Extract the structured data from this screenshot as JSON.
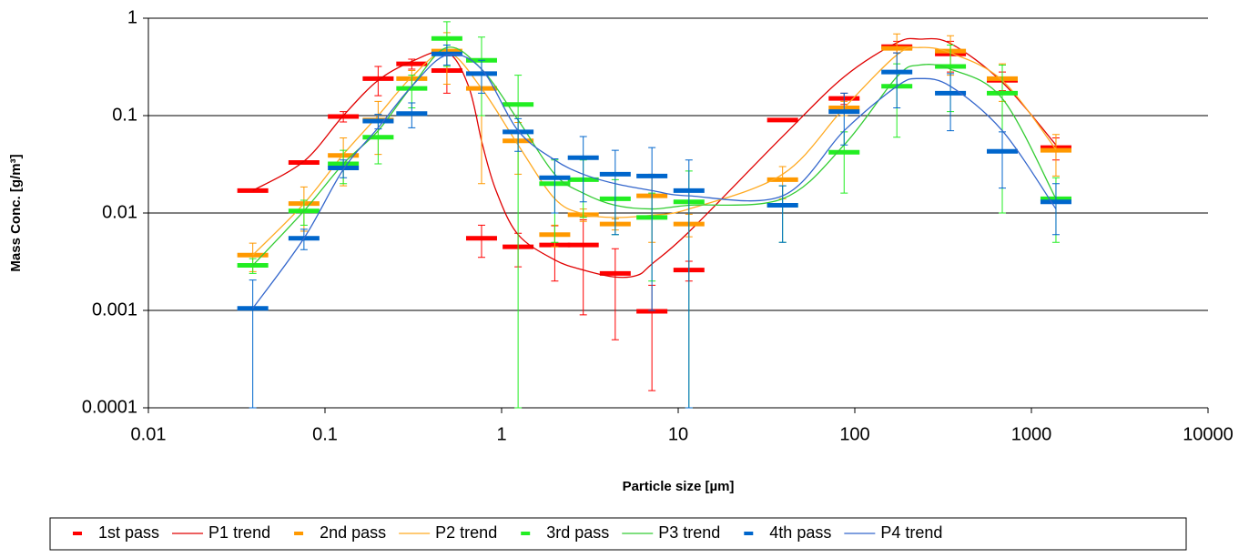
{
  "chart_data": {
    "type": "scatter",
    "x_label": "Particle size [µm]",
    "y_label": "Mass Conc. [g/m³]",
    "xscale": "log",
    "yscale": "log",
    "xlim": [
      0.01,
      10000
    ],
    "xticks": [
      0.01,
      0.1,
      1,
      10,
      100,
      1000,
      10000
    ],
    "ylim": [
      0.0001,
      1
    ],
    "yticks": [
      0.0001,
      0.001,
      0.01,
      0.1,
      1
    ],
    "grid": true,
    "legend": "bottom",
    "series": [
      {
        "name": "1st pass",
        "style": "dash",
        "color": "#ff0000",
        "x": [
          0.039,
          0.076,
          0.127,
          0.2,
          0.31,
          0.49,
          0.77,
          1.24,
          2.0,
          2.9,
          4.4,
          7.1,
          11.5,
          39,
          87,
          173,
          348,
          684,
          1377
        ],
        "values": [
          0.017,
          0.033,
          0.098,
          0.24,
          0.34,
          0.29,
          0.0055,
          0.0045,
          0.0047,
          0.0047,
          0.0024,
          0.00098,
          0.0026,
          0.09,
          0.15,
          0.51,
          0.43,
          0.23,
          0.047
        ],
        "errors": [
          0,
          0.001,
          0.012,
          0.08,
          0.04,
          0.12,
          0.002,
          0.0017,
          0.0027,
          0.0038,
          0.0019,
          0.00083,
          0.0006,
          0,
          0.02,
          0.07,
          0.15,
          0.05,
          0.012
        ]
      },
      {
        "name": "P1 trend",
        "style": "line",
        "color": "#e00000",
        "x": [
          0.039,
          0.076,
          0.127,
          0.2,
          0.31,
          0.49,
          0.65,
          0.78,
          0.93,
          1.24,
          2.0,
          2.9,
          4.4,
          5.9,
          7.1,
          11.5,
          39,
          87,
          173,
          232,
          348,
          684,
          1377
        ],
        "values": [
          0.017,
          0.034,
          0.1,
          0.23,
          0.36,
          0.45,
          0.2,
          0.05,
          0.017,
          0.006,
          0.0033,
          0.0026,
          0.0022,
          0.0023,
          0.003,
          0.0064,
          0.061,
          0.25,
          0.56,
          0.61,
          0.55,
          0.22,
          0.05
        ]
      },
      {
        "name": "2nd pass",
        "style": "dash",
        "color": "#ff9900",
        "x": [
          0.039,
          0.076,
          0.127,
          0.2,
          0.31,
          0.49,
          0.77,
          1.24,
          2.0,
          2.9,
          4.4,
          7.1,
          11.5,
          39,
          87,
          173,
          348,
          684,
          1377
        ],
        "values": [
          0.0037,
          0.0125,
          0.039,
          0.09,
          0.24,
          0.46,
          0.19,
          0.055,
          0.006,
          0.0096,
          0.0077,
          0.015,
          0.0077,
          0.022,
          0.12,
          0.49,
          0.46,
          0.24,
          0.044
        ],
        "errors": [
          0.0012,
          0.006,
          0.02,
          0.05,
          0.05,
          0.25,
          0.17,
          0.03,
          0.0015,
          0.0014,
          0.001,
          0.01,
          0.002,
          0.008,
          0.02,
          0.2,
          0.2,
          0.1,
          0.02
        ]
      },
      {
        "name": "P2 trend",
        "style": "line",
        "color": "#ffaa22",
        "x": [
          0.039,
          0.076,
          0.127,
          0.2,
          0.31,
          0.49,
          0.77,
          1.24,
          2.0,
          2.9,
          4.4,
          7.1,
          11.5,
          39,
          87,
          173,
          232,
          348,
          684,
          1377
        ],
        "values": [
          0.0037,
          0.0125,
          0.04,
          0.1,
          0.25,
          0.45,
          0.19,
          0.05,
          0.014,
          0.0098,
          0.009,
          0.0095,
          0.011,
          0.025,
          0.12,
          0.42,
          0.5,
          0.44,
          0.23,
          0.045
        ]
      },
      {
        "name": "3rd pass",
        "style": "dash",
        "color": "#22ee22",
        "x": [
          0.039,
          0.076,
          0.127,
          0.2,
          0.31,
          0.49,
          0.77,
          1.24,
          2.0,
          2.9,
          4.4,
          7.1,
          11.5,
          39,
          87,
          173,
          348,
          684,
          1377
        ],
        "values": [
          0.0029,
          0.0105,
          0.032,
          0.06,
          0.19,
          0.62,
          0.37,
          0.13,
          0.02,
          0.022,
          0.014,
          0.009,
          0.013,
          0.012,
          0.042,
          0.2,
          0.32,
          0.17,
          0.014
        ],
        "errors": [
          0.0005,
          0.003,
          0.012,
          0.028,
          0.07,
          0.3,
          0.27,
          0.13,
          0.015,
          0.013,
          0.008,
          0.007,
          0.014,
          0.007,
          0.026,
          0.14,
          0.21,
          0.16,
          0.009
        ]
      },
      {
        "name": "P3 trend",
        "style": "line",
        "color": "#33cc33",
        "x": [
          0.039,
          0.076,
          0.127,
          0.2,
          0.31,
          0.49,
          0.77,
          1.24,
          2.0,
          2.9,
          4.4,
          7.1,
          11.5,
          39,
          87,
          173,
          232,
          348,
          684,
          1377
        ],
        "values": [
          0.0029,
          0.0105,
          0.032,
          0.07,
          0.2,
          0.5,
          0.3,
          0.09,
          0.025,
          0.016,
          0.012,
          0.011,
          0.012,
          0.014,
          0.05,
          0.25,
          0.33,
          0.3,
          0.15,
          0.014
        ]
      },
      {
        "name": "4th pass",
        "style": "dash",
        "color": "#0066cc",
        "x": [
          0.039,
          0.076,
          0.127,
          0.2,
          0.31,
          0.49,
          0.77,
          1.24,
          2.0,
          2.9,
          4.4,
          7.1,
          11.5,
          39,
          87,
          173,
          348,
          684,
          1377
        ],
        "values": [
          0.00105,
          0.0055,
          0.029,
          0.088,
          0.105,
          0.43,
          0.27,
          0.068,
          0.023,
          0.037,
          0.025,
          0.024,
          0.017,
          0.012,
          0.11,
          0.28,
          0.17,
          0.043,
          0.013
        ],
        "errors": [
          0.001,
          0.0013,
          0.006,
          0.015,
          0.03,
          0.1,
          0.1,
          0.025,
          0.013,
          0.024,
          0.019,
          0.023,
          0.018,
          0.007,
          0.06,
          0.16,
          0.1,
          0.025,
          0.007
        ]
      },
      {
        "name": "P4 trend",
        "style": "line",
        "color": "#3366cc",
        "x": [
          0.039,
          0.076,
          0.127,
          0.2,
          0.31,
          0.49,
          0.77,
          1.24,
          2.0,
          2.9,
          4.4,
          7.1,
          11.5,
          39,
          87,
          173,
          232,
          348,
          684,
          1377
        ],
        "values": [
          0.00105,
          0.0055,
          0.028,
          0.075,
          0.2,
          0.42,
          0.3,
          0.07,
          0.035,
          0.025,
          0.02,
          0.017,
          0.015,
          0.015,
          0.07,
          0.2,
          0.24,
          0.2,
          0.07,
          0.011
        ]
      }
    ]
  }
}
